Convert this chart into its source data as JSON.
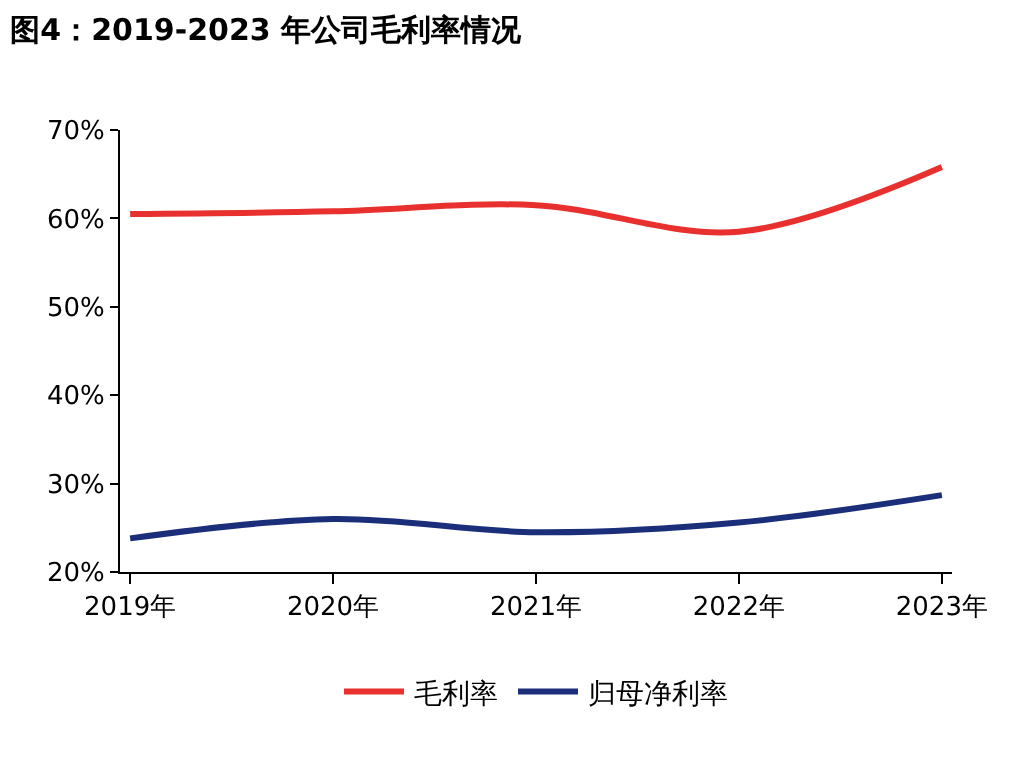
{
  "chart_data": {
    "type": "line",
    "title": "图4：2019-2023 年公司毛利率情况",
    "categories": [
      "2019年",
      "2020年",
      "2021年",
      "2022年",
      "2023年"
    ],
    "series": [
      {
        "name": "毛利率",
        "color": "#e8312f",
        "values": [
          60.5,
          60.8,
          61.5,
          58.5,
          65.8
        ]
      },
      {
        "name": "归母净利率",
        "color": "#1a2e7a",
        "values": [
          23.8,
          26.0,
          24.5,
          25.6,
          28.7
        ]
      }
    ],
    "ylim": [
      20,
      70
    ],
    "yticks": [
      {
        "value": 20,
        "label": "20%"
      },
      {
        "value": 30,
        "label": "30%"
      },
      {
        "value": 40,
        "label": "40%"
      },
      {
        "value": 50,
        "label": "50%"
      },
      {
        "value": 60,
        "label": "60%"
      },
      {
        "value": 70,
        "label": "70%"
      }
    ],
    "legend": "bottom",
    "marker": "none",
    "line_style": "solid"
  }
}
